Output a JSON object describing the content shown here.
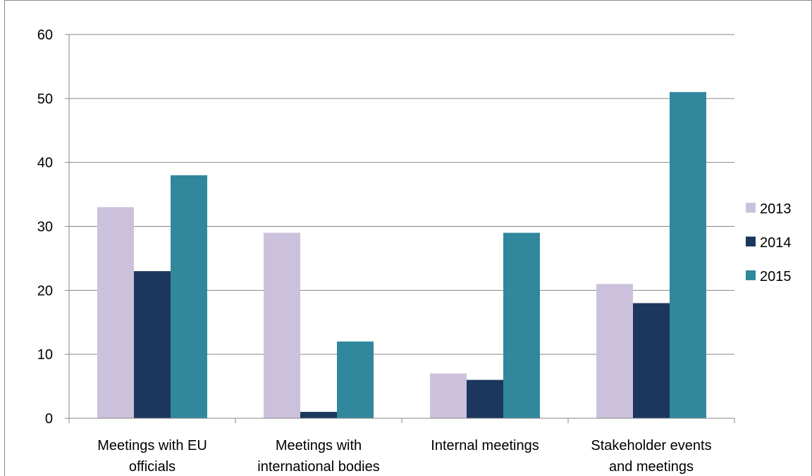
{
  "chart_data": {
    "type": "bar",
    "categories": [
      [
        "Meetings with EU",
        "officials"
      ],
      [
        "Meetings with",
        "international bodies"
      ],
      [
        "Internal meetings"
      ],
      [
        "Stakeholder events",
        "and meetings"
      ]
    ],
    "series": [
      {
        "name": "2013",
        "color": "#ccc1dc",
        "values": [
          33,
          29,
          7,
          21
        ]
      },
      {
        "name": "2014",
        "color": "#1b375e",
        "values": [
          23,
          1,
          6,
          18
        ]
      },
      {
        "name": "2015",
        "color": "#31889c",
        "values": [
          38,
          12,
          29,
          51
        ]
      }
    ],
    "ylim": [
      0,
      60
    ],
    "yticks": [
      "0",
      "10",
      "20",
      "30",
      "40",
      "50",
      "60"
    ],
    "grid": true,
    "legend_position": "right"
  }
}
